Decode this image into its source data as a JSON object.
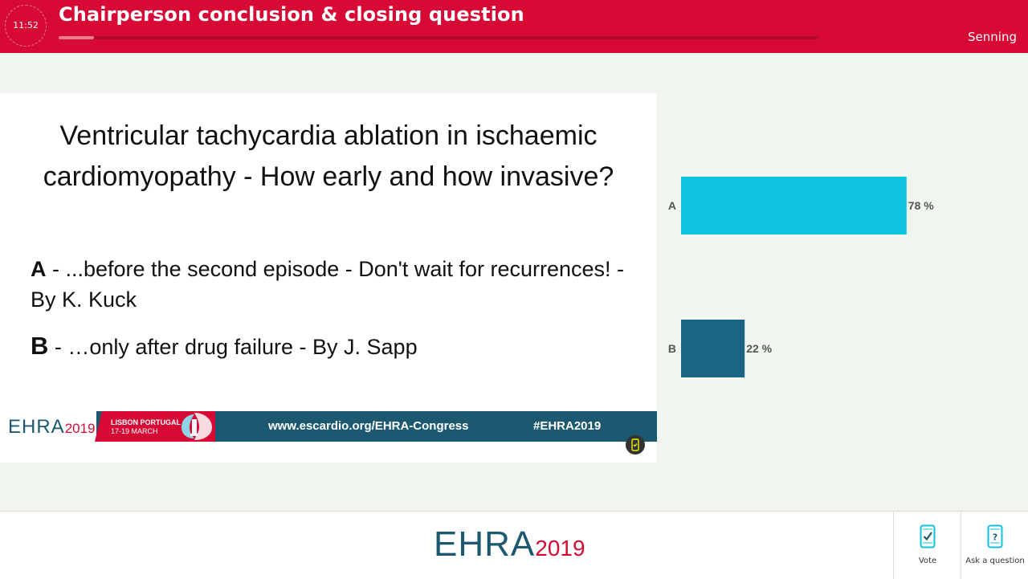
{
  "header": {
    "timer": "11:52",
    "title": "Chairperson conclusion & closing question",
    "progress": 0.047,
    "speaker": "Senning"
  },
  "slide": {
    "title": "Ventricular tachycardia ablation in ischaemic cardiomyopathy - How early and how invasive?",
    "options": [
      {
        "letter": "A",
        "text": " - ...before the second episode - Don't wait for recurrences! - By K. Kuck"
      },
      {
        "letter": "B",
        "text": " - …only after drug failure - By J. Sapp"
      }
    ],
    "footer": {
      "logo": "EHRA",
      "logo_year": "2019",
      "city": "LISBON PORTUGAL",
      "dates": "17-19 MARCH",
      "url": "www.escardio.org/EHRA-Congress",
      "hashtag": "#EHRA2019"
    }
  },
  "chart_data": {
    "type": "bar",
    "orientation": "horizontal",
    "categories": [
      "A",
      "B"
    ],
    "values": [
      78,
      22
    ],
    "labels": [
      "78 %",
      "22 %"
    ],
    "colors": [
      "#10c2e2",
      "#1b6582"
    ],
    "xlim": [
      0,
      100
    ]
  },
  "bottombar": {
    "logo": "EHRA",
    "logo_year": "2019",
    "vote_label": "Vote",
    "ask_label": "Ask a question"
  },
  "colors": {
    "brand_red": "#d70a35",
    "brand_teal": "#1c5970"
  }
}
